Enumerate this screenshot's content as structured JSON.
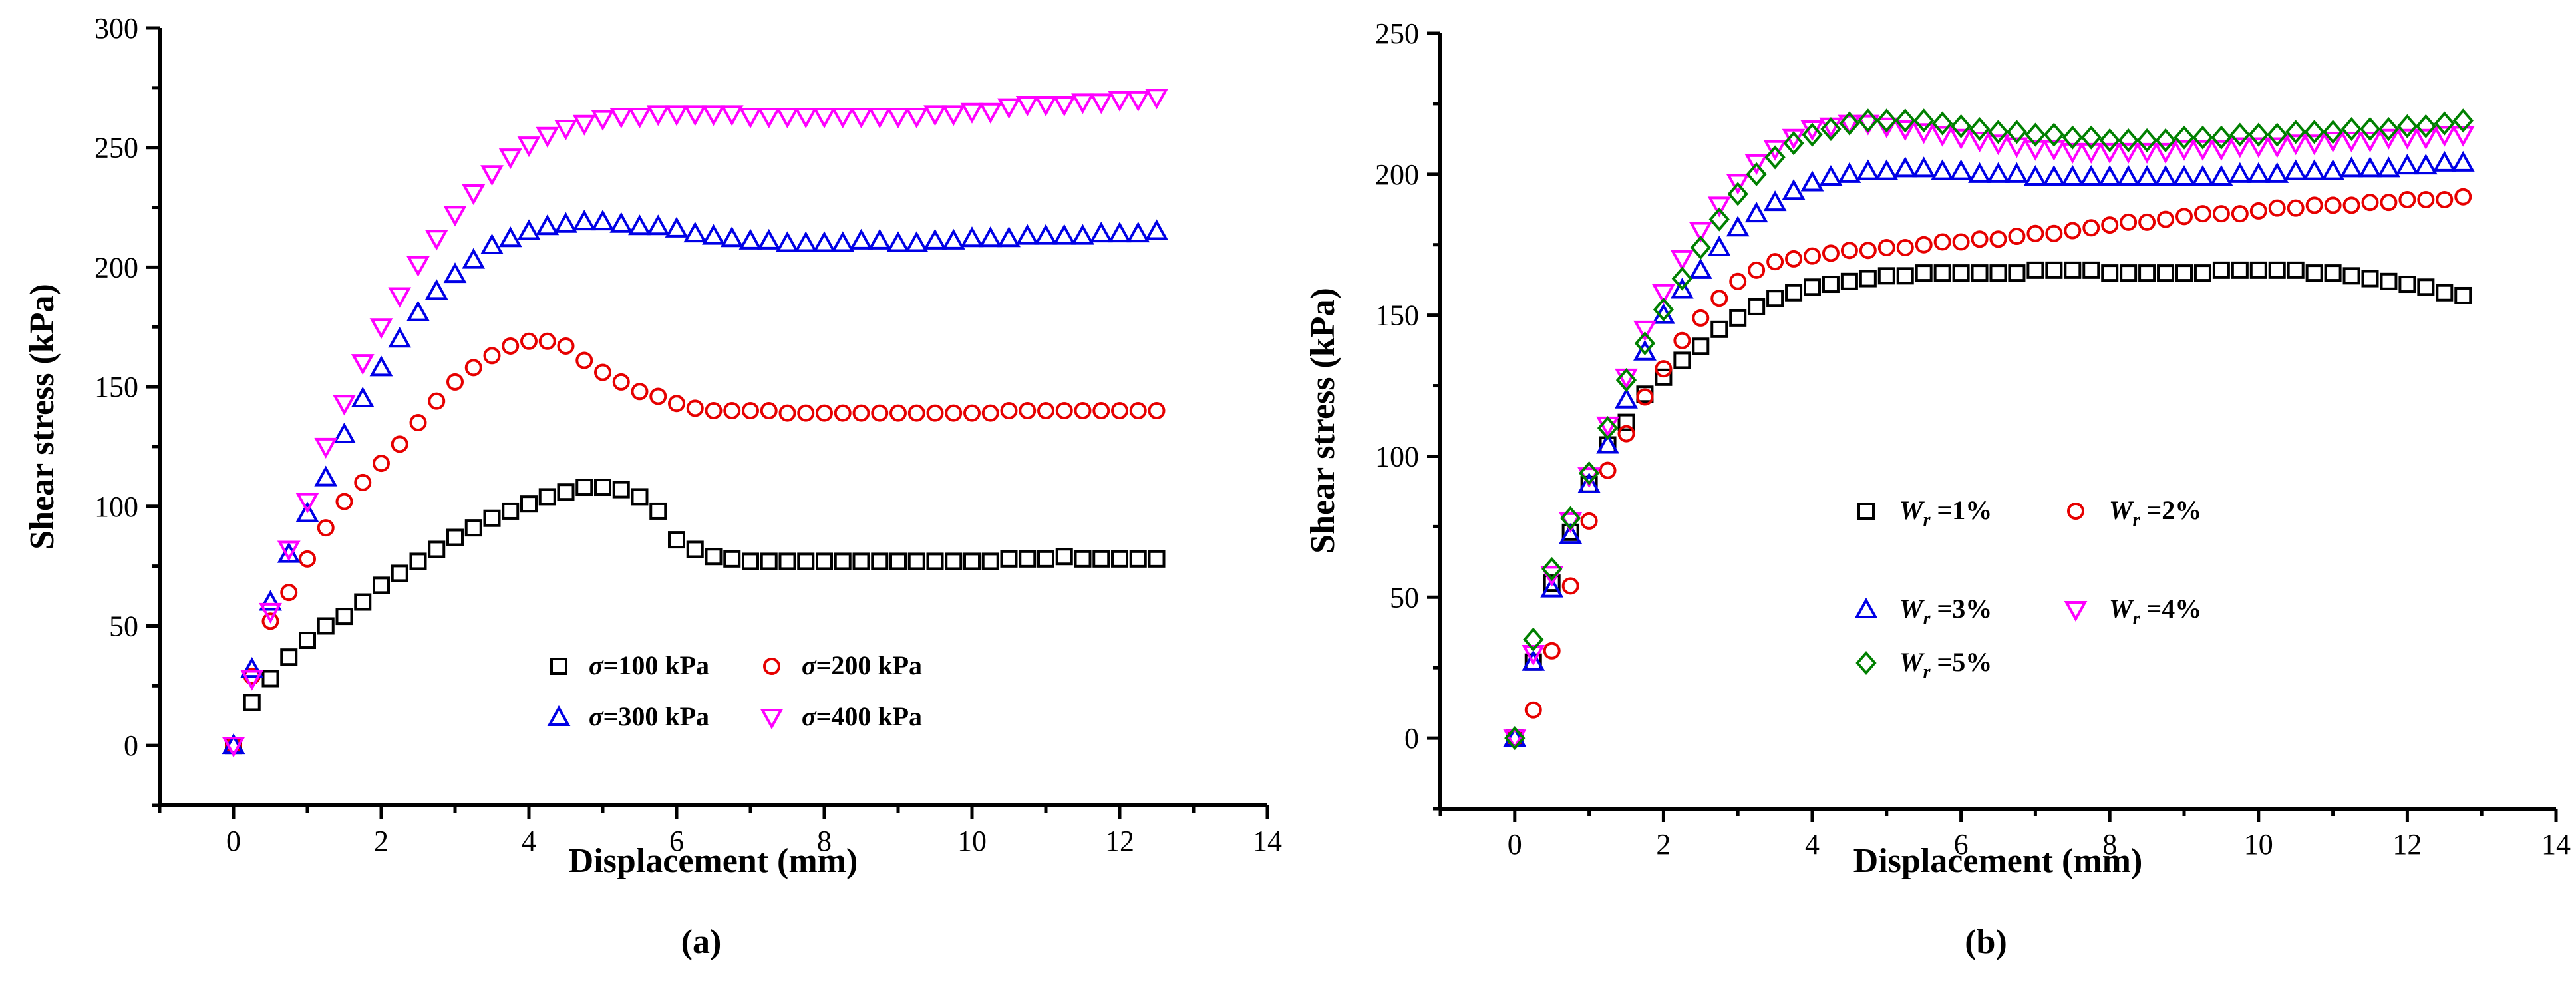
{
  "chart_data": [
    {
      "type": "scatter",
      "panel_label": "(a)",
      "xlabel": "Displacement (mm)",
      "ylabel": "Shear stress (kPa)",
      "xlim": [
        -1,
        14
      ],
      "ylim": [
        -25,
        300
      ],
      "xticks": [
        0,
        2,
        4,
        6,
        8,
        10,
        12,
        14
      ],
      "yticks": [
        0,
        50,
        100,
        150,
        200,
        250,
        300
      ],
      "legend_position": "lower-center",
      "series": [
        {
          "name": "σ=100 kPa",
          "symbol": "σ",
          "label_rest": "=100 kPa",
          "marker": "square",
          "color": "#000000",
          "x": [
            0,
            0.25,
            0.5,
            0.75,
            1,
            1.25,
            1.5,
            1.75,
            2,
            2.25,
            2.5,
            2.75,
            3,
            3.25,
            3.5,
            3.75,
            4,
            4.25,
            4.5,
            4.75,
            5,
            5.25,
            5.5,
            5.75,
            6,
            6.25,
            6.5,
            6.75,
            7,
            7.25,
            7.5,
            7.75,
            8,
            8.25,
            8.5,
            8.75,
            9,
            9.25,
            9.5,
            9.75,
            10,
            10.25,
            10.5,
            10.75,
            11,
            11.25,
            11.5,
            11.75,
            12,
            12.25,
            12.5
          ],
          "y": [
            0,
            18,
            28,
            37,
            44,
            50,
            54,
            60,
            67,
            72,
            77,
            82,
            87,
            91,
            95,
            98,
            101,
            104,
            106,
            108,
            108,
            107,
            104,
            98,
            86,
            82,
            79,
            78,
            77,
            77,
            77,
            77,
            77,
            77,
            77,
            77,
            77,
            77,
            77,
            77,
            77,
            77,
            78,
            78,
            78,
            79,
            78,
            78,
            78,
            78,
            78
          ]
        },
        {
          "name": "σ=200 kPa",
          "symbol": "σ",
          "label_rest": "=200 kPa",
          "marker": "circle",
          "color": "#e60000",
          "x": [
            0,
            0.25,
            0.5,
            0.75,
            1,
            1.25,
            1.5,
            1.75,
            2,
            2.25,
            2.5,
            2.75,
            3,
            3.25,
            3.5,
            3.75,
            4,
            4.25,
            4.5,
            4.75,
            5,
            5.25,
            5.5,
            5.75,
            6,
            6.25,
            6.5,
            6.75,
            7,
            7.25,
            7.5,
            7.75,
            8,
            8.25,
            8.5,
            8.75,
            9,
            9.25,
            9.5,
            9.75,
            10,
            10.25,
            10.5,
            10.75,
            11,
            11.25,
            11.5,
            11.75,
            12,
            12.25,
            12.5
          ],
          "y": [
            0,
            29,
            52,
            64,
            78,
            91,
            102,
            110,
            118,
            126,
            135,
            144,
            152,
            158,
            163,
            167,
            169,
            169,
            167,
            161,
            156,
            152,
            148,
            146,
            143,
            141,
            140,
            140,
            140,
            140,
            139,
            139,
            139,
            139,
            139,
            139,
            139,
            139,
            139,
            139,
            139,
            139,
            140,
            140,
            140,
            140,
            140,
            140,
            140,
            140,
            140
          ]
        },
        {
          "name": "σ=300 kPa",
          "symbol": "σ",
          "label_rest": "=300 kPa",
          "marker": "triangle-up",
          "color": "#0000e6",
          "x": [
            0,
            0.25,
            0.5,
            0.75,
            1,
            1.25,
            1.5,
            1.75,
            2,
            2.25,
            2.5,
            2.75,
            3,
            3.25,
            3.5,
            3.75,
            4,
            4.25,
            4.5,
            4.75,
            5,
            5.25,
            5.5,
            5.75,
            6,
            6.25,
            6.5,
            6.75,
            7,
            7.25,
            7.5,
            7.75,
            8,
            8.25,
            8.5,
            8.75,
            9,
            9.25,
            9.5,
            9.75,
            10,
            10.25,
            10.5,
            10.75,
            11,
            11.25,
            11.5,
            11.75,
            12,
            12.25,
            12.5
          ],
          "y": [
            0,
            32,
            60,
            80,
            97,
            112,
            130,
            145,
            158,
            170,
            181,
            190,
            197,
            203,
            209,
            212,
            215,
            217,
            218,
            219,
            219,
            218,
            217,
            217,
            216,
            214,
            213,
            212,
            211,
            211,
            210,
            210,
            210,
            210,
            211,
            211,
            210,
            210,
            211,
            211,
            212,
            212,
            212,
            213,
            213,
            213,
            213,
            214,
            214,
            214,
            215
          ]
        },
        {
          "name": "σ=400 kPa",
          "symbol": "σ",
          "label_rest": "=400 kPa",
          "marker": "triangle-down",
          "color": "#ff00ff",
          "x": [
            0,
            0.25,
            0.5,
            0.75,
            1,
            1.25,
            1.5,
            1.75,
            2,
            2.25,
            2.5,
            2.75,
            3,
            3.25,
            3.5,
            3.75,
            4,
            4.25,
            4.5,
            4.75,
            5,
            5.25,
            5.5,
            5.75,
            6,
            6.25,
            6.5,
            6.75,
            7,
            7.25,
            7.5,
            7.75,
            8,
            8.25,
            8.5,
            8.75,
            9,
            9.25,
            9.5,
            9.75,
            10,
            10.25,
            10.5,
            10.75,
            11,
            11.25,
            11.5,
            11.75,
            12,
            12.25,
            12.5
          ],
          "y": [
            0,
            28,
            56,
            82,
            102,
            125,
            143,
            160,
            175,
            188,
            201,
            212,
            222,
            231,
            239,
            246,
            251,
            255,
            258,
            260,
            262,
            263,
            263,
            264,
            264,
            264,
            264,
            264,
            263,
            263,
            263,
            263,
            263,
            263,
            263,
            263,
            263,
            263,
            264,
            264,
            265,
            265,
            267,
            268,
            268,
            268,
            269,
            269,
            270,
            270,
            271
          ]
        }
      ]
    },
    {
      "type": "scatter",
      "panel_label": "(b)",
      "xlabel": "Displacement (mm)",
      "ylabel": "Shear stress (kPa)",
      "xlim": [
        -1,
        14
      ],
      "ylim": [
        -25,
        250
      ],
      "xticks": [
        0,
        2,
        4,
        6,
        8,
        10,
        12,
        14
      ],
      "yticks": [
        0,
        50,
        100,
        150,
        200,
        250
      ],
      "legend_position": "center",
      "series": [
        {
          "name": "Wr =1%",
          "symbol": "W",
          "subscript": "r",
          "label_rest": " =1%",
          "marker": "square",
          "color": "#000000",
          "x": [
            0,
            0.25,
            0.5,
            0.75,
            1,
            1.25,
            1.5,
            1.75,
            2,
            2.25,
            2.5,
            2.75,
            3,
            3.25,
            3.5,
            3.75,
            4,
            4.25,
            4.5,
            4.75,
            5,
            5.25,
            5.5,
            5.75,
            6,
            6.25,
            6.5,
            6.75,
            7,
            7.25,
            7.5,
            7.75,
            8,
            8.25,
            8.5,
            8.75,
            9,
            9.25,
            9.5,
            9.75,
            10,
            10.25,
            10.5,
            10.75,
            11,
            11.25,
            11.5,
            11.75,
            12,
            12.25,
            12.5,
            12.75
          ],
          "y": [
            0,
            27,
            55,
            73,
            90,
            104,
            112,
            122,
            128,
            134,
            139,
            145,
            149,
            153,
            156,
            158,
            160,
            161,
            162,
            163,
            164,
            164,
            165,
            165,
            165,
            165,
            165,
            165,
            166,
            166,
            166,
            166,
            165,
            165,
            165,
            165,
            165,
            165,
            166,
            166,
            166,
            166,
            166,
            165,
            165,
            164,
            163,
            162,
            161,
            160,
            158,
            157
          ]
        },
        {
          "name": "Wr =2%",
          "symbol": "W",
          "subscript": "r",
          "label_rest": " =2%",
          "marker": "circle",
          "color": "#e60000",
          "x": [
            0,
            0.25,
            0.5,
            0.75,
            1,
            1.25,
            1.5,
            1.75,
            2,
            2.25,
            2.5,
            2.75,
            3,
            3.25,
            3.5,
            3.75,
            4,
            4.25,
            4.5,
            4.75,
            5,
            5.25,
            5.5,
            5.75,
            6,
            6.25,
            6.5,
            6.75,
            7,
            7.25,
            7.5,
            7.75,
            8,
            8.25,
            8.5,
            8.75,
            9,
            9.25,
            9.5,
            9.75,
            10,
            10.25,
            10.5,
            10.75,
            11,
            11.25,
            11.5,
            11.75,
            12,
            12.25,
            12.5,
            12.75
          ],
          "y": [
            0,
            10,
            31,
            54,
            77,
            95,
            108,
            121,
            131,
            141,
            149,
            156,
            162,
            166,
            169,
            170,
            171,
            172,
            173,
            173,
            174,
            174,
            175,
            176,
            176,
            177,
            177,
            178,
            179,
            179,
            180,
            181,
            182,
            183,
            183,
            184,
            185,
            186,
            186,
            186,
            187,
            188,
            188,
            189,
            189,
            189,
            190,
            190,
            191,
            191,
            191,
            192
          ]
        },
        {
          "name": "Wr =3%",
          "symbol": "W",
          "subscript": "r",
          "label_rest": " =3%",
          "marker": "triangle-up",
          "color": "#0000e6",
          "x": [
            0,
            0.25,
            0.5,
            0.75,
            1,
            1.25,
            1.5,
            1.75,
            2,
            2.25,
            2.5,
            2.75,
            3,
            3.25,
            3.5,
            3.75,
            4,
            4.25,
            4.5,
            4.75,
            5,
            5.25,
            5.5,
            5.75,
            6,
            6.25,
            6.5,
            6.75,
            7,
            7.25,
            7.5,
            7.75,
            8,
            8.25,
            8.5,
            8.75,
            9,
            9.25,
            9.5,
            9.75,
            10,
            10.25,
            10.5,
            10.75,
            11,
            11.25,
            11.5,
            11.75,
            12,
            12.25,
            12.5,
            12.75
          ],
          "y": [
            0,
            27,
            53,
            72,
            90,
            104,
            120,
            137,
            150,
            159,
            166,
            174,
            181,
            186,
            190,
            194,
            197,
            199,
            200,
            201,
            201,
            202,
            202,
            201,
            201,
            200,
            200,
            200,
            199,
            199,
            199,
            199,
            199,
            199,
            199,
            199,
            199,
            199,
            199,
            200,
            200,
            200,
            201,
            201,
            201,
            202,
            202,
            202,
            203,
            203,
            204,
            204
          ]
        },
        {
          "name": "Wr =4%",
          "symbol": "W",
          "subscript": "r",
          "label_rest": " =4%",
          "marker": "triangle-down",
          "color": "#ff00ff",
          "x": [
            0,
            0.25,
            0.5,
            0.75,
            1,
            1.25,
            1.5,
            1.75,
            2,
            2.25,
            2.5,
            2.75,
            3,
            3.25,
            3.5,
            3.75,
            4,
            4.25,
            4.5,
            4.75,
            5,
            5.25,
            5.5,
            5.75,
            6,
            6.25,
            6.5,
            6.75,
            7,
            7.25,
            7.5,
            7.75,
            8,
            8.25,
            8.5,
            8.75,
            9,
            9.25,
            9.5,
            9.75,
            10,
            10.25,
            10.5,
            10.75,
            11,
            11.25,
            11.5,
            11.75,
            12,
            12.25,
            12.5,
            12.75
          ],
          "y": [
            0,
            30,
            58,
            77,
            93,
            111,
            128,
            145,
            158,
            170,
            180,
            189,
            197,
            204,
            209,
            213,
            216,
            217,
            218,
            218,
            217,
            216,
            215,
            214,
            213,
            212,
            211,
            210,
            209,
            209,
            208,
            208,
            208,
            208,
            208,
            208,
            209,
            209,
            209,
            210,
            210,
            210,
            211,
            211,
            212,
            212,
            212,
            213,
            213,
            213,
            214,
            214
          ]
        },
        {
          "name": "Wr =5%",
          "symbol": "W",
          "subscript": "r",
          "label_rest": " =5%",
          "marker": "diamond",
          "color": "#008000",
          "x": [
            0,
            0.25,
            0.5,
            0.75,
            1,
            1.25,
            1.5,
            1.75,
            2,
            2.25,
            2.5,
            2.75,
            3,
            3.25,
            3.5,
            3.75,
            4,
            4.25,
            4.5,
            4.75,
            5,
            5.25,
            5.5,
            5.75,
            6,
            6.25,
            6.5,
            6.75,
            7,
            7.25,
            7.5,
            7.75,
            8,
            8.25,
            8.5,
            8.75,
            9,
            9.25,
            9.5,
            9.75,
            10,
            10.25,
            10.5,
            10.75,
            11,
            11.25,
            11.5,
            11.75,
            12,
            12.25,
            12.5,
            12.75
          ],
          "y": [
            0,
            35,
            60,
            78,
            94,
            110,
            127,
            140,
            152,
            163,
            174,
            184,
            193,
            200,
            206,
            211,
            214,
            216,
            218,
            219,
            219,
            219,
            219,
            218,
            217,
            216,
            215,
            215,
            214,
            214,
            213,
            213,
            212,
            212,
            212,
            212,
            213,
            213,
            213,
            214,
            214,
            214,
            215,
            215,
            215,
            216,
            216,
            216,
            217,
            217,
            218,
            219
          ]
        }
      ]
    }
  ]
}
